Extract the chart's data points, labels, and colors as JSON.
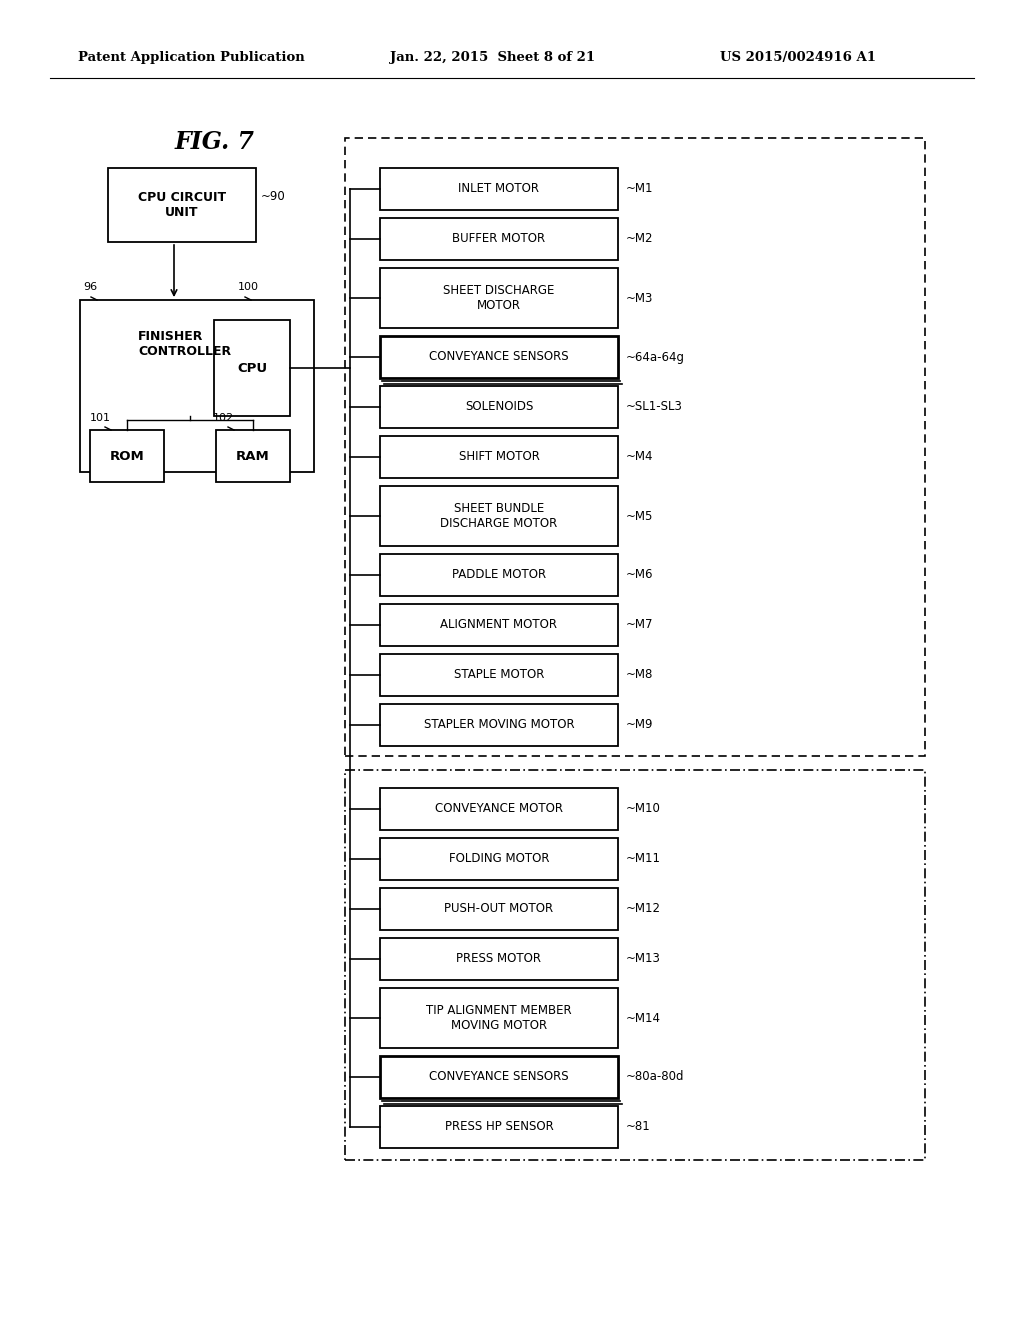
{
  "header_left": "Patent Application Publication",
  "header_mid": "Jan. 22, 2015  Sheet 8 of 21",
  "header_right": "US 2015/0024916 A1",
  "fig_label": "FIG. 7",
  "bg_color": "#ffffff",
  "group1_items": [
    {
      "label": "INLET MOTOR",
      "ref": "~M1",
      "bold": false,
      "twolines": false
    },
    {
      "label": "BUFFER MOTOR",
      "ref": "~M2",
      "bold": false,
      "twolines": false
    },
    {
      "label": "SHEET DISCHARGE\nMOTOR",
      "ref": "~M3",
      "bold": false,
      "twolines": true
    },
    {
      "label": "CONVEYANCE SENSORS",
      "ref": "~64a-64g",
      "bold": true,
      "twolines": false
    },
    {
      "label": "SOLENOIDS",
      "ref": "~SL1-SL3",
      "bold": false,
      "twolines": false
    },
    {
      "label": "SHIFT MOTOR",
      "ref": "~M4",
      "bold": false,
      "twolines": false
    },
    {
      "label": "SHEET BUNDLE\nDISCHARGE MOTOR",
      "ref": "~M5",
      "bold": false,
      "twolines": true
    },
    {
      "label": "PADDLE MOTOR",
      "ref": "~M6",
      "bold": false,
      "twolines": false
    },
    {
      "label": "ALIGNMENT MOTOR",
      "ref": "~M7",
      "bold": false,
      "twolines": false
    },
    {
      "label": "STAPLE MOTOR",
      "ref": "~M8",
      "bold": false,
      "twolines": false
    },
    {
      "label": "STAPLER MOVING MOTOR",
      "ref": "~M9",
      "bold": false,
      "twolines": false
    }
  ],
  "group2_items": [
    {
      "label": "CONVEYANCE MOTOR",
      "ref": "~M10",
      "bold": false,
      "twolines": false
    },
    {
      "label": "FOLDING MOTOR",
      "ref": "~M11",
      "bold": false,
      "twolines": false
    },
    {
      "label": "PUSH-OUT MOTOR",
      "ref": "~M12",
      "bold": false,
      "twolines": false
    },
    {
      "label": "PRESS MOTOR",
      "ref": "~M13",
      "bold": false,
      "twolines": false
    },
    {
      "label": "TIP ALIGNMENT MEMBER\nMOVING MOTOR",
      "ref": "~M14",
      "bold": false,
      "twolines": true
    },
    {
      "label": "CONVEYANCE SENSORS",
      "ref": "~80a-80d",
      "bold": true,
      "twolines": false
    },
    {
      "label": "PRESS HP SENSOR",
      "ref": "~81",
      "bold": false,
      "twolines": false
    }
  ]
}
